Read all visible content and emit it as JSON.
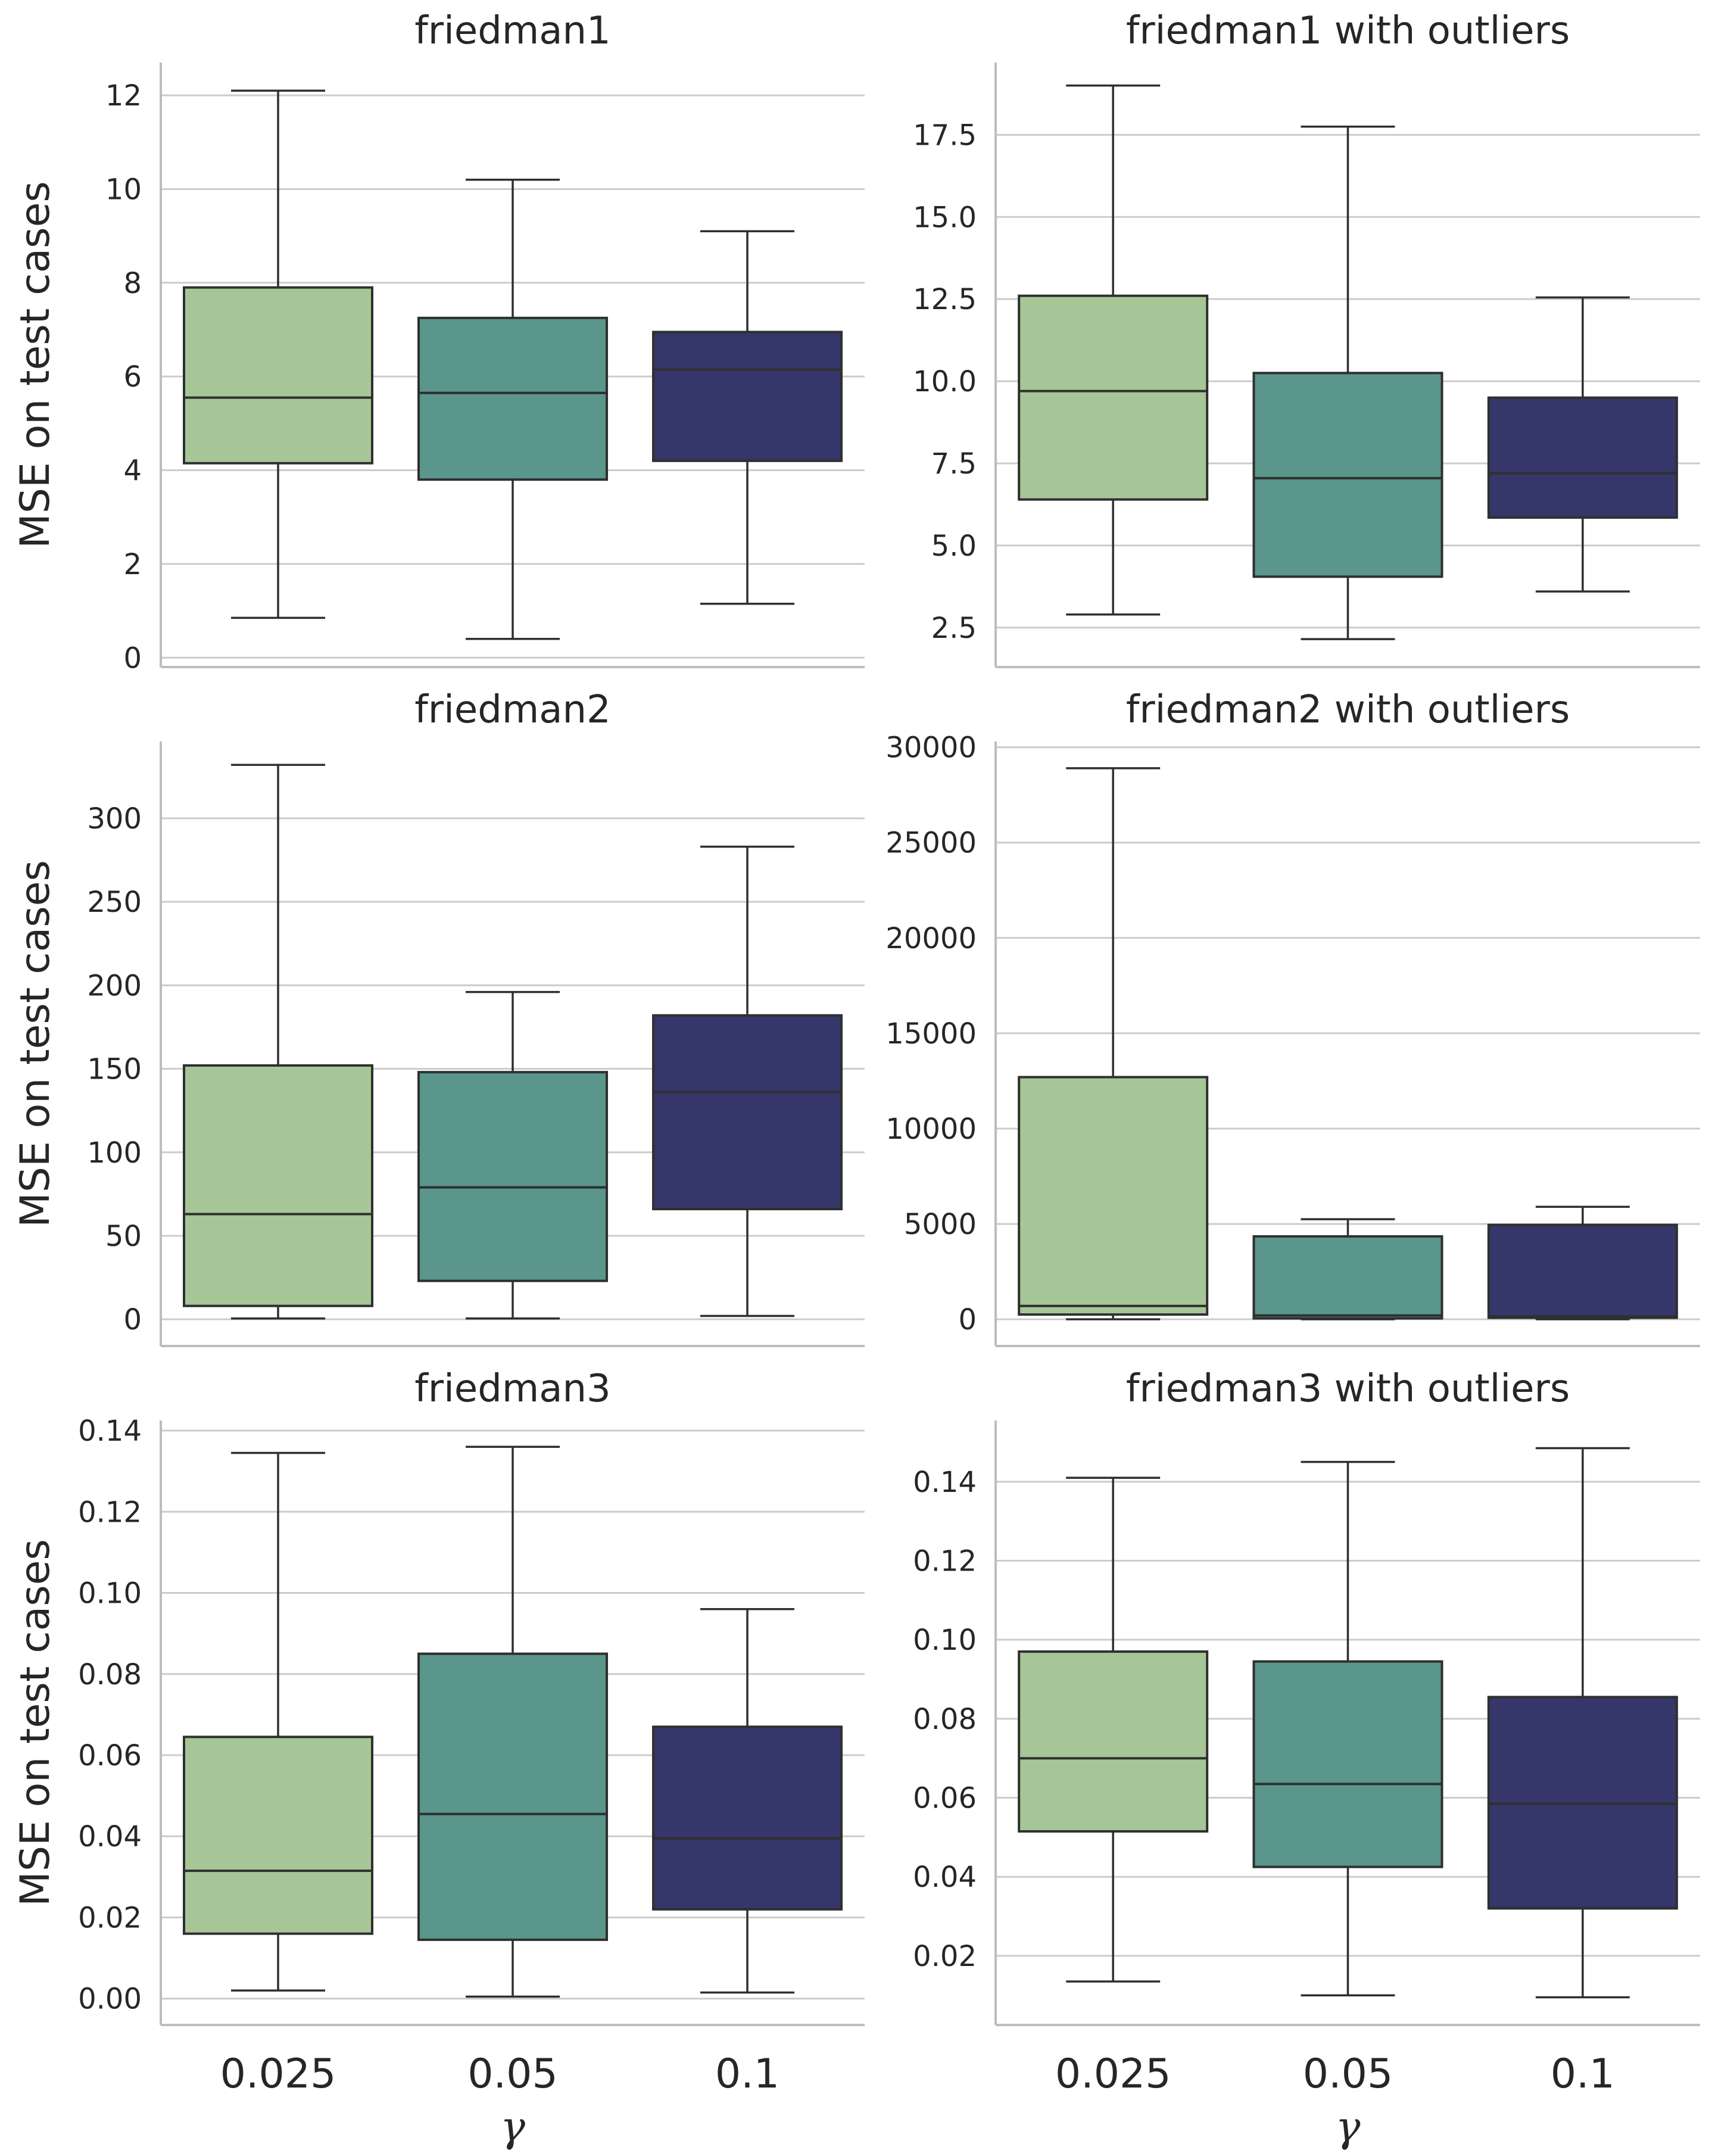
{
  "figure": {
    "ylabel": "MSE on test cases",
    "xlabel": "γ",
    "categories": [
      "0.025",
      "0.05",
      "0.1"
    ],
    "colors": {
      "box_0.025": "#a7c697",
      "box_0.05": "#5a968b",
      "box_0.1": "#353669",
      "edge": "#2f2f2f",
      "grid": "#cccccc"
    }
  },
  "chart_data": [
    {
      "type": "box",
      "title": "friedman1",
      "categories": [
        "0.025",
        "0.05",
        "0.1"
      ],
      "ylim": [
        -0.2,
        12.7
      ],
      "yticks": [
        0,
        2,
        4,
        6,
        8,
        10,
        12
      ],
      "ytick_labels": [
        "0",
        "2",
        "4",
        "6",
        "8",
        "10",
        "12"
      ],
      "boxes": [
        {
          "whislo": 0.85,
          "q1": 4.15,
          "med": 5.55,
          "q3": 7.9,
          "whishi": 12.1
        },
        {
          "whislo": 0.4,
          "q1": 3.8,
          "med": 5.65,
          "q3": 7.25,
          "whishi": 10.2
        },
        {
          "whislo": 1.15,
          "q1": 4.2,
          "med": 6.15,
          "q3": 6.95,
          "whishi": 9.1
        }
      ]
    },
    {
      "type": "box",
      "title": "friedman1 with outliers",
      "categories": [
        "0.025",
        "0.05",
        "0.1"
      ],
      "ylim": [
        1.3,
        19.7
      ],
      "yticks": [
        2.5,
        5.0,
        7.5,
        10.0,
        12.5,
        15.0,
        17.5
      ],
      "ytick_labels": [
        "2.5",
        "5.0",
        "7.5",
        "10.0",
        "12.5",
        "15.0",
        "17.5"
      ],
      "boxes": [
        {
          "whislo": 2.9,
          "q1": 6.4,
          "med": 9.7,
          "q3": 12.6,
          "whishi": 19.0
        },
        {
          "whislo": 2.15,
          "q1": 4.05,
          "med": 7.05,
          "q3": 10.25,
          "whishi": 17.75
        },
        {
          "whislo": 3.6,
          "q1": 5.85,
          "med": 7.2,
          "q3": 9.5,
          "whishi": 12.55
        }
      ]
    },
    {
      "type": "box",
      "title": "friedman2",
      "categories": [
        "0.025",
        "0.05",
        "0.1"
      ],
      "ylim": [
        -16,
        346
      ],
      "yticks": [
        0,
        50,
        100,
        150,
        200,
        250,
        300
      ],
      "ytick_labels": [
        "0",
        "50",
        "100",
        "150",
        "200",
        "250",
        "300"
      ],
      "boxes": [
        {
          "whislo": 0.5,
          "q1": 8,
          "med": 63,
          "q3": 152,
          "whishi": 332
        },
        {
          "whislo": 0.5,
          "q1": 23,
          "med": 79,
          "q3": 148,
          "whishi": 196
        },
        {
          "whislo": 2,
          "q1": 66,
          "med": 136,
          "q3": 182,
          "whishi": 283
        }
      ]
    },
    {
      "type": "box",
      "title": "friedman2 with outliers",
      "categories": [
        "0.025",
        "0.05",
        "0.1"
      ],
      "ylim": [
        -1400,
        30300
      ],
      "yticks": [
        0,
        5000,
        10000,
        15000,
        20000,
        25000,
        30000
      ],
      "ytick_labels": [
        "0",
        "5000",
        "10000",
        "15000",
        "20000",
        "25000",
        "30000"
      ],
      "boxes": [
        {
          "whislo": 0,
          "q1": 250,
          "med": 700,
          "q3": 12700,
          "whishi": 28900
        },
        {
          "whislo": 0,
          "q1": 50,
          "med": 200,
          "q3": 4350,
          "whishi": 5250
        },
        {
          "whislo": 0,
          "q1": 80,
          "med": 150,
          "q3": 4950,
          "whishi": 5900
        }
      ]
    },
    {
      "type": "box",
      "title": "friedman3",
      "categories": [
        "0.025",
        "0.05",
        "0.1"
      ],
      "ylim": [
        -0.0065,
        0.1425
      ],
      "yticks": [
        0.0,
        0.02,
        0.04,
        0.06,
        0.08,
        0.1,
        0.12,
        0.14
      ],
      "ytick_labels": [
        "0.00",
        "0.02",
        "0.04",
        "0.06",
        "0.08",
        "0.10",
        "0.12",
        "0.14"
      ],
      "boxes": [
        {
          "whislo": 0.002,
          "q1": 0.016,
          "med": 0.0315,
          "q3": 0.0645,
          "whishi": 0.1345
        },
        {
          "whislo": 0.0005,
          "q1": 0.0145,
          "med": 0.0455,
          "q3": 0.085,
          "whishi": 0.136
        },
        {
          "whislo": 0.0015,
          "q1": 0.022,
          "med": 0.0395,
          "q3": 0.067,
          "whishi": 0.096
        }
      ]
    },
    {
      "type": "box",
      "title": "friedman3 with outliers",
      "categories": [
        "0.025",
        "0.05",
        "0.1"
      ],
      "ylim": [
        0.0025,
        0.1555
      ],
      "yticks": [
        0.02,
        0.04,
        0.06,
        0.08,
        0.1,
        0.12,
        0.14
      ],
      "ytick_labels": [
        "0.02",
        "0.04",
        "0.06",
        "0.08",
        "0.10",
        "0.12",
        "0.14"
      ],
      "boxes": [
        {
          "whislo": 0.0135,
          "q1": 0.0515,
          "med": 0.07,
          "q3": 0.097,
          "whishi": 0.141
        },
        {
          "whislo": 0.01,
          "q1": 0.0425,
          "med": 0.0635,
          "q3": 0.0945,
          "whishi": 0.145
        },
        {
          "whislo": 0.0095,
          "q1": 0.032,
          "med": 0.0585,
          "q3": 0.0855,
          "whishi": 0.1485
        }
      ]
    }
  ]
}
